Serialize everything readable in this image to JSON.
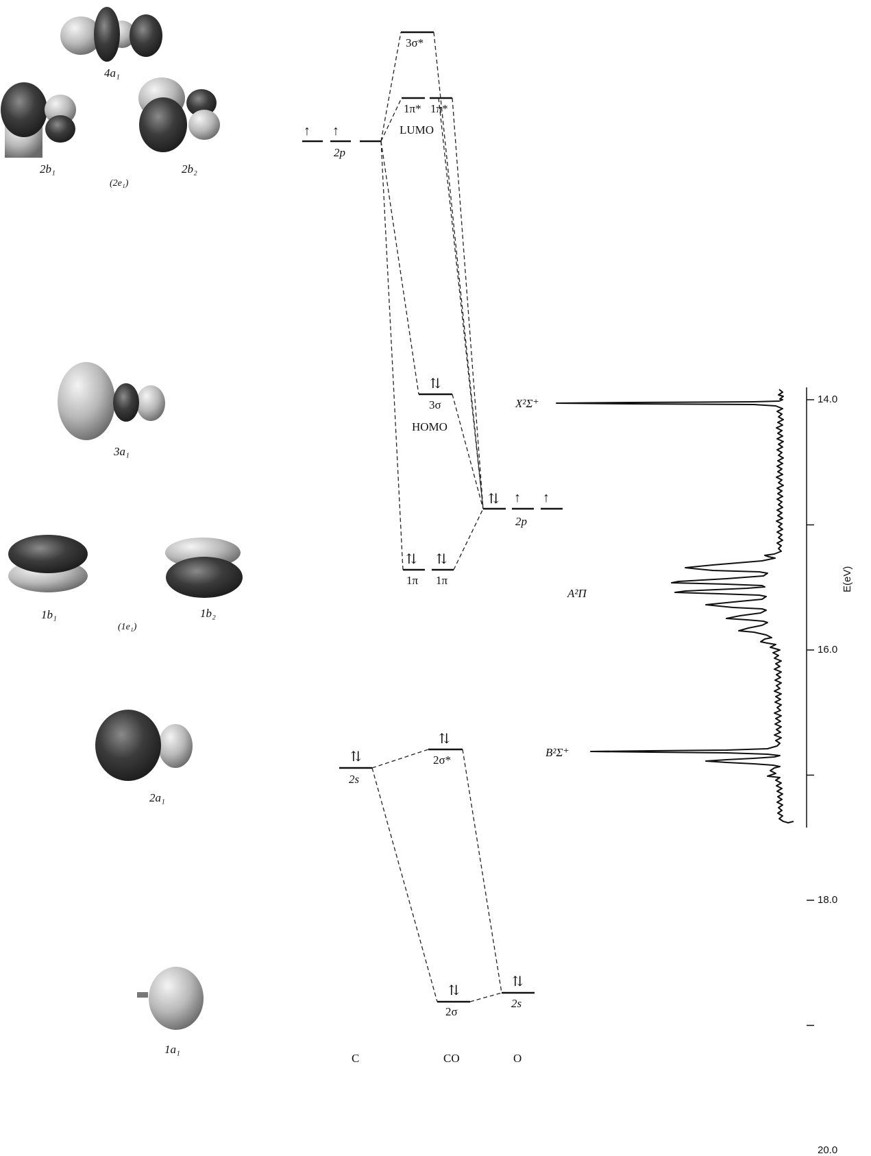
{
  "orbital_images": {
    "4a1": "4a₁",
    "2b1": "2b₁",
    "2e1": "(2e₁)",
    "2b2": "2b₂",
    "3a1": "3a₁",
    "1b1": "1b₁",
    "1e1": "(1e₁)",
    "1b2": "1b₂",
    "2a1": "2a₁",
    "1a1": "1a₁"
  },
  "mo_diagram": {
    "c_2p": "2p",
    "c_2s": "2s",
    "co_3sigma_star": "3σ*",
    "co_1pi_star_a": "1π*",
    "co_1pi_star_b": "1π*",
    "lumo": "LUMO",
    "co_3sigma": "3σ",
    "homo": "HOMO",
    "co_1pi_a": "1π",
    "co_1pi_b": "1π",
    "co_2sigma_star": "2σ*",
    "co_2sigma": "2σ",
    "o_2p": "2p",
    "o_2s": "2s",
    "spin_up": "↑",
    "spin_pair": "⇅",
    "column_c": "C",
    "column_co": "CO",
    "column_o": "O"
  },
  "spectrum": {
    "axis_label": "E(eV)",
    "ticks": [
      "14.0",
      "16.0",
      "18.0",
      "20.0"
    ],
    "tick_values": [
      14.0,
      16.0,
      18.0,
      20.0
    ],
    "minor_tick_values": [
      15.0,
      17.0,
      19.0
    ],
    "band_x": "X²Σ⁺",
    "band_a": "A²Π",
    "band_b": "B²Σ⁺"
  }
}
